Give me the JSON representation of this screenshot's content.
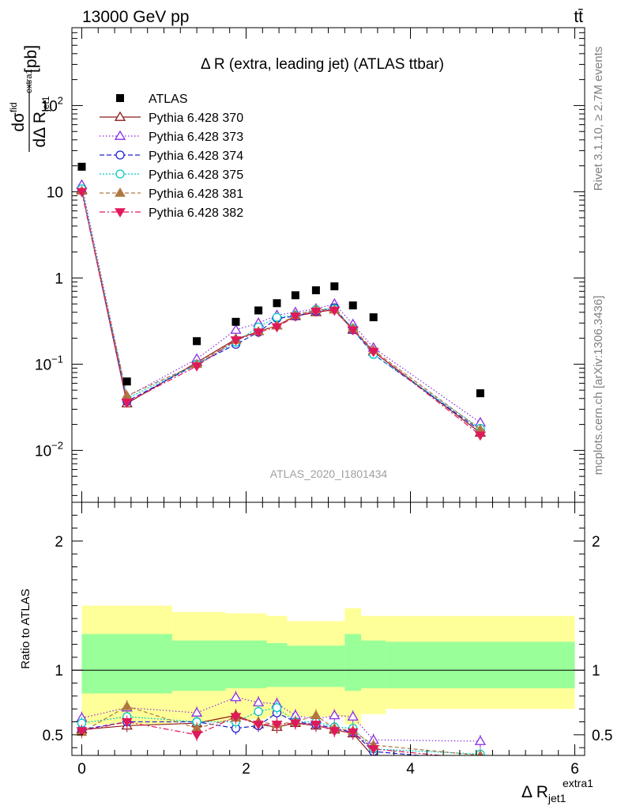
{
  "header": {
    "left": "13000 GeV pp",
    "right": "tt̄"
  },
  "side_labels": {
    "rivet": "Rivet 3.1.10, ≥ 2.7M events",
    "mcplots": "mcplots.cern.ch [arXiv:1306.3436]"
  },
  "watermark": "ATLAS_2020_I1801434",
  "chart_data": [
    {
      "type": "scatter",
      "panel": "main",
      "title": "Δ R (extra, leading jet) (ATLAS ttbar)",
      "ylabel": "dσ^fid / dΔ R_jet1^extra1 [pb]",
      "ylabel_parts": {
        "num": "dσ",
        "num_sup": "fid",
        "den": "dΔ R",
        "den_sub": "jet1",
        "den_sup": "extra1",
        "unit": "[pb]"
      },
      "yscale": "log",
      "ylim": [
        0.0025,
        800
      ],
      "xlim": [
        -0.12,
        6.12
      ],
      "y_ticks": [
        {
          "value": 0.01,
          "label": "10",
          "sup": "−2"
        },
        {
          "value": 0.1,
          "label": "10",
          "sup": "−1"
        },
        {
          "value": 1,
          "label": "1",
          "sup": ""
        },
        {
          "value": 10,
          "label": "10",
          "sup": ""
        },
        {
          "value": 100,
          "label": "10",
          "sup": "2"
        }
      ],
      "legend_position": "top-left",
      "x": [
        0,
        0.55,
        1.4,
        1.875,
        2.15,
        2.375,
        2.6,
        2.85,
        3.075,
        3.3,
        3.55,
        4.85
      ],
      "data": {
        "name": "ATLAS",
        "values": [
          19.5,
          0.063,
          0.185,
          0.31,
          0.42,
          0.51,
          0.63,
          0.72,
          0.8,
          0.48,
          0.35,
          0.046
        ]
      },
      "series": [
        {
          "name": "Pythia 6.428 370",
          "color": "#8b1a1a",
          "marker": "triangle-up-open",
          "dash": "",
          "values": [
            10.5,
            0.035,
            0.105,
            0.195,
            0.24,
            0.28,
            0.36,
            0.4,
            0.43,
            0.25,
            0.14,
            0.016
          ]
        },
        {
          "name": "Pythia 6.428 373",
          "color": "#8a2be2",
          "marker": "triangle-up-open",
          "dash": "1.5,2.5",
          "values": [
            12.0,
            0.042,
            0.115,
            0.25,
            0.3,
            0.37,
            0.4,
            0.44,
            0.5,
            0.29,
            0.155,
            0.021
          ]
        },
        {
          "name": "Pythia 6.428 374",
          "color": "#1f1fd6",
          "marker": "circle-open",
          "dash": "6,3",
          "values": [
            10.5,
            0.037,
            0.1,
            0.17,
            0.235,
            0.34,
            0.36,
            0.41,
            0.45,
            0.25,
            0.13,
            0.017
          ]
        },
        {
          "name": "Pythia 6.428 375",
          "color": "#00c8c8",
          "marker": "circle-open",
          "dash": "2,2",
          "values": [
            10.8,
            0.04,
            0.1,
            0.18,
            0.27,
            0.35,
            0.37,
            0.43,
            0.44,
            0.26,
            0.13,
            0.018
          ]
        },
        {
          "name": "Pythia 6.428 381",
          "color": "#b07840",
          "marker": "triangle-up-filled",
          "dash": "5,3",
          "values": [
            10.2,
            0.043,
            0.1,
            0.19,
            0.24,
            0.28,
            0.37,
            0.43,
            0.43,
            0.26,
            0.145,
            0.0175
          ]
        },
        {
          "name": "Pythia 6.428 382",
          "color": "#e0195a",
          "marker": "triangle-down-filled",
          "dash": "7,3,2,3",
          "values": [
            10.0,
            0.036,
            0.095,
            0.19,
            0.235,
            0.27,
            0.36,
            0.41,
            0.42,
            0.25,
            0.14,
            0.015
          ]
        }
      ]
    },
    {
      "type": "scatter",
      "panel": "ratio",
      "ylabel": "Ratio to ATLAS",
      "xlabel": "Δ R_jet1^extra1",
      "xlabel_parts": {
        "base": "Δ R",
        "sub": "jet1",
        "sup": "extra1"
      },
      "ylim": [
        0.34,
        2.3
      ],
      "xlim": [
        -0.12,
        6.12
      ],
      "x_ticks": [
        0,
        2,
        4,
        6
      ],
      "y_ticks": [
        0.5,
        1,
        2
      ],
      "bins": [
        {
          "lo": 0.0,
          "hi": 1.1,
          "inner": [
            0.82,
            1.28
          ],
          "outer": [
            0.58,
            1.5
          ]
        },
        {
          "lo": 1.1,
          "hi": 1.75,
          "inner": [
            0.84,
            1.23
          ],
          "outer": [
            0.6,
            1.45
          ]
        },
        {
          "lo": 1.75,
          "hi": 2.25,
          "inner": [
            0.86,
            1.23
          ],
          "outer": [
            0.62,
            1.44
          ]
        },
        {
          "lo": 2.25,
          "hi": 2.5,
          "inner": [
            0.87,
            1.21
          ],
          "outer": [
            0.64,
            1.42
          ]
        },
        {
          "lo": 2.5,
          "hi": 3.2,
          "inner": [
            0.87,
            1.19
          ],
          "outer": [
            0.64,
            1.38
          ]
        },
        {
          "lo": 3.2,
          "hi": 3.4,
          "inner": [
            0.84,
            1.28
          ],
          "outer": [
            0.58,
            1.48
          ]
        },
        {
          "lo": 3.4,
          "hi": 3.7,
          "inner": [
            0.86,
            1.23
          ],
          "outer": [
            0.66,
            1.42
          ]
        },
        {
          "lo": 3.7,
          "hi": 6.0,
          "inner": [
            0.86,
            1.22
          ],
          "outer": [
            0.7,
            1.42
          ]
        }
      ],
      "x": [
        0,
        0.55,
        1.4,
        1.875,
        2.15,
        2.375,
        2.6,
        2.85,
        3.075,
        3.3,
        3.55,
        4.85
      ],
      "series": [
        {
          "name": "Pythia 6.428 370",
          "values": [
            0.54,
            0.57,
            0.59,
            0.65,
            0.58,
            0.56,
            0.59,
            0.57,
            0.54,
            0.51,
            0.33,
            0.28
          ]
        },
        {
          "name": "Pythia 6.428 373",
          "values": [
            0.63,
            0.71,
            0.67,
            0.79,
            0.75,
            0.74,
            0.65,
            0.62,
            0.65,
            0.64,
            0.46,
            0.45
          ]
        },
        {
          "name": "Pythia 6.428 374",
          "values": [
            0.54,
            0.6,
            0.6,
            0.55,
            0.57,
            0.67,
            0.6,
            0.58,
            0.55,
            0.52,
            0.37,
            0.3
          ]
        },
        {
          "name": "Pythia 6.428 375",
          "values": [
            0.59,
            0.64,
            0.6,
            0.6,
            0.68,
            0.71,
            0.6,
            0.6,
            0.56,
            0.55,
            0.39,
            0.35
          ]
        },
        {
          "name": "Pythia 6.428 381",
          "values": [
            0.52,
            0.72,
            0.55,
            0.63,
            0.6,
            0.58,
            0.6,
            0.65,
            0.55,
            0.53,
            0.42,
            0.34
          ]
        },
        {
          "name": "Pythia 6.428 382",
          "values": [
            0.53,
            0.6,
            0.5,
            0.64,
            0.58,
            0.58,
            0.59,
            0.58,
            0.53,
            0.52,
            0.39,
            0.31
          ]
        }
      ]
    }
  ]
}
